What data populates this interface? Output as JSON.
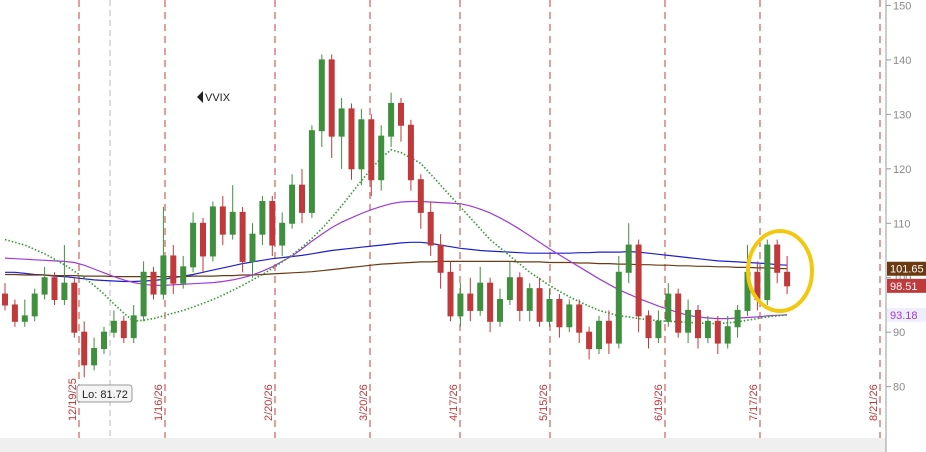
{
  "chart_data": {
    "type": "candlestick",
    "title": "VVIX",
    "open": [
      97,
      95,
      92,
      93,
      97,
      100,
      96,
      99,
      90,
      84,
      87,
      90,
      92,
      89,
      93,
      101,
      97,
      104,
      99,
      102,
      110,
      104,
      113,
      108,
      112,
      103,
      108,
      114,
      106,
      110,
      117,
      112,
      127,
      140,
      126,
      131,
      120,
      129,
      118,
      126,
      132,
      128,
      118,
      112,
      106,
      101,
      93,
      97,
      94,
      99,
      92,
      96,
      100,
      94,
      98,
      92,
      96,
      91,
      95,
      90,
      87,
      92,
      88,
      101,
      106,
      93,
      89,
      92,
      97,
      90,
      94,
      89,
      92,
      88,
      91,
      94,
      101,
      96,
      106,
      101
    ],
    "high": [
      99,
      96,
      96,
      98,
      102,
      101,
      106,
      100,
      92,
      89,
      91,
      94,
      93,
      95,
      103,
      102,
      113,
      106,
      104,
      112,
      111,
      114,
      115,
      117,
      113,
      110,
      115,
      115,
      112,
      119,
      120,
      128,
      141,
      141,
      133,
      132,
      131,
      130,
      128,
      134,
      133,
      129,
      119,
      114,
      108,
      103,
      99,
      100,
      102,
      100,
      98,
      103,
      101,
      99,
      100,
      98,
      97,
      96,
      96,
      91,
      93,
      94,
      104,
      110,
      107,
      94,
      94,
      99,
      98,
      96,
      95,
      93,
      93,
      93,
      95,
      106,
      103,
      107,
      107,
      104
    ],
    "low": [
      94,
      91,
      91,
      92,
      96,
      95,
      95,
      89,
      81.72,
      83,
      86,
      89,
      88,
      88,
      92,
      96,
      96,
      97,
      98,
      101,
      101,
      103,
      106,
      107,
      101,
      100,
      106,
      104,
      104,
      109,
      110,
      111,
      124,
      122,
      120,
      118,
      117,
      115,
      116,
      124,
      125,
      116,
      109,
      104,
      98,
      92,
      91,
      92,
      93,
      90,
      91,
      95,
      92,
      92,
      91,
      91,
      89,
      90,
      88,
      85,
      86,
      86,
      87,
      99,
      90,
      87,
      88,
      91,
      89,
      88,
      87,
      88,
      86,
      87,
      89,
      93,
      94,
      95,
      99,
      97
    ],
    "close": [
      95,
      92,
      93,
      97,
      100,
      96,
      99,
      90,
      84,
      87,
      90,
      92,
      89,
      93,
      101,
      97,
      104,
      99,
      102,
      110,
      104,
      113,
      108,
      112,
      103,
      108,
      114,
      106,
      110,
      117,
      112,
      127,
      140,
      126,
      131,
      120,
      129,
      118,
      126,
      132,
      128,
      118,
      112,
      106,
      101,
      93,
      97,
      94,
      99,
      92,
      96,
      100,
      94,
      98,
      92,
      96,
      91,
      95,
      90,
      87,
      92,
      88,
      101,
      106,
      93,
      89,
      92,
      97,
      90,
      94,
      89,
      92,
      88,
      91,
      94,
      101,
      96,
      106,
      101,
      98.51
    ],
    "up_color": "#3f8f3f",
    "down_color": "#c0393b",
    "lines": [
      {
        "color": "#1f1fd0",
        "style": "solid",
        "values": [
          101,
          101,
          100.8,
          100.6,
          100.5,
          100.3,
          100.2,
          100,
          99.8,
          99.6,
          99.5,
          99.4,
          99.3,
          99.3,
          99.4,
          99.5,
          99.7,
          100,
          100.3,
          100.6,
          101,
          101.4,
          101.8,
          102.2,
          102.6,
          102.9,
          103.2,
          103.5,
          103.7,
          103.9,
          104.1,
          104.4,
          104.7,
          105,
          105.2,
          105.4,
          105.6,
          105.8,
          106,
          106.2,
          106.4,
          106.5,
          106.5,
          106.3,
          106,
          105.7,
          105.4,
          105.2,
          105,
          104.9,
          104.8,
          104.7,
          104.6,
          104.5,
          104.5,
          104.5,
          104.5,
          104.5,
          104.6,
          104.6,
          104.7,
          104.7,
          104.7,
          104.8,
          104.7,
          104.5,
          104.3,
          104.1,
          103.9,
          103.7,
          103.5,
          103.3,
          103.1,
          103,
          102.9,
          102.8,
          102.7,
          102.6,
          102.4,
          102.3
        ]
      },
      {
        "color": "#6b3a12",
        "style": "solid",
        "values": [
          100.6,
          100.6,
          100.5,
          100.5,
          100.5,
          100.4,
          100.4,
          100.4,
          100.3,
          100.3,
          100.3,
          100.2,
          100.2,
          100.2,
          100.2,
          100.2,
          100.2,
          100.2,
          100.2,
          100.3,
          100.3,
          100.3,
          100.4,
          100.4,
          100.5,
          100.5,
          100.6,
          100.7,
          100.8,
          100.9,
          101,
          101.1,
          101.3,
          101.5,
          101.7,
          101.9,
          102.1,
          102.3,
          102.5,
          102.6,
          102.7,
          102.8,
          102.9,
          102.9,
          103,
          103,
          103,
          103,
          103,
          103,
          103,
          103,
          102.9,
          102.9,
          102.9,
          102.8,
          102.8,
          102.8,
          102.7,
          102.7,
          102.6,
          102.6,
          102.5,
          102.5,
          102.4,
          102.4,
          102.3,
          102.3,
          102.2,
          102.2,
          102.1,
          102.1,
          102,
          102,
          101.9,
          101.9,
          101.8,
          101.8,
          101.7,
          101.65
        ]
      },
      {
        "color": "#a03ad8",
        "style": "solid",
        "values": [
          103.6,
          103.5,
          103.4,
          103.3,
          103.2,
          103.1,
          103,
          102.8,
          102.3,
          101.6,
          100.9,
          100.2,
          99.6,
          99.1,
          98.8,
          98.6,
          98.6,
          98.7,
          98.8,
          98.9,
          99,
          99.1,
          99.3,
          99.6,
          100,
          100.5,
          101.2,
          102,
          103,
          104,
          105.3,
          106.7,
          108,
          109.2,
          110.2,
          111,
          111.8,
          112.5,
          113.1,
          113.6,
          113.9,
          114,
          114,
          113.9,
          113.8,
          113.7,
          113.6,
          113.2,
          112.6,
          111.9,
          111,
          110,
          108.9,
          107.7,
          106.5,
          105.3,
          104.2,
          103.1,
          102,
          100.9,
          99.8,
          98.8,
          97.8,
          97,
          96.2,
          95.5,
          94.8,
          94.2,
          93.6,
          93.1,
          92.8,
          92.6,
          92.5,
          92.5,
          92.6,
          92.7,
          92.8,
          93,
          93.1,
          93.18
        ]
      },
      {
        "color": "#2f9a2f",
        "style": "dotted",
        "values": [
          107,
          106.5,
          106,
          105.2,
          104.4,
          103.4,
          102.4,
          101.2,
          100,
          98.6,
          97,
          95.2,
          93.5,
          92,
          92.2,
          92.5,
          93,
          93.5,
          94,
          94.6,
          95.3,
          96,
          96.8,
          97.7,
          98.6,
          99.6,
          100.6,
          101.7,
          102.9,
          104.2,
          105.6,
          107.2,
          109,
          111,
          113.2,
          115.5,
          117.8,
          120,
          122,
          123.5,
          123,
          122,
          121,
          119,
          117,
          115,
          113,
          111,
          109,
          107,
          105.5,
          104,
          102.5,
          101,
          99.8,
          98.6,
          97.5,
          96.5,
          95.6,
          94.8,
          94,
          93.5,
          93,
          92.8,
          92.5,
          92.3,
          92.1,
          92,
          91.9,
          91.8,
          91.7,
          91.6,
          91.6,
          91.7,
          91.9,
          92.2,
          92.5,
          92.8,
          93,
          93.2
        ]
      }
    ],
    "ylim": [
      68,
      151
    ],
    "yticks": [
      150,
      140,
      130,
      120,
      110,
      100,
      90,
      80
    ],
    "date_labels": [
      "12/19/25",
      "1/16/26",
      "2/20/26",
      "3/20/26",
      "4/17/26",
      "5/15/26",
      "6/19/26",
      "7/17/26",
      "8/21/26"
    ],
    "low_label": "Lo: 81.72"
  }
}
